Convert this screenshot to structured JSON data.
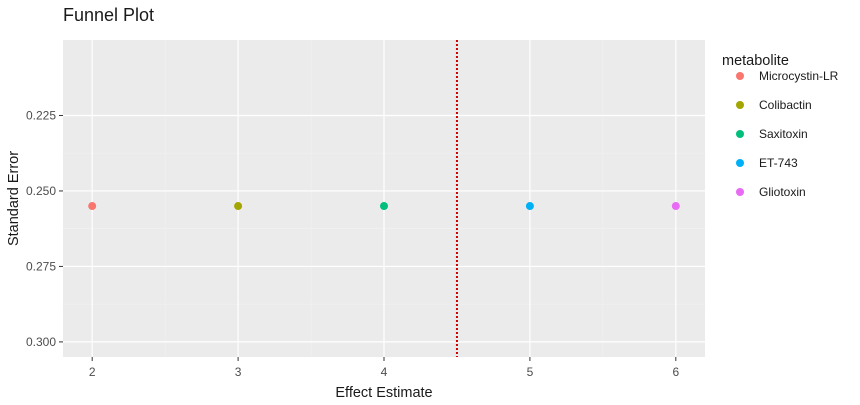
{
  "chart_data": {
    "type": "scatter",
    "title": "Funnel Plot",
    "xlabel": "Effect Estimate",
    "ylabel": "Standard Error",
    "xlim": [
      1.8,
      6.2
    ],
    "ylim": [
      0.305,
      0.2
    ],
    "y_reversed": true,
    "x_ticks": [
      2,
      3,
      4,
      5,
      6
    ],
    "x_tick_labels": [
      "2",
      "3",
      "4",
      "5",
      "6"
    ],
    "y_ticks": [
      0.225,
      0.25,
      0.275,
      0.3
    ],
    "y_tick_labels": [
      "0.225",
      "0.250",
      "0.275",
      "0.300"
    ],
    "reference_line": {
      "x": 4.5,
      "style": "dotted",
      "color": "#cc0000"
    },
    "grid": true,
    "legend": {
      "title": "metabolite",
      "placement": "right"
    },
    "series": [
      {
        "name": "Microcystin-LR",
        "color": "#F8766D",
        "x": [
          2
        ],
        "y": [
          0.255
        ]
      },
      {
        "name": "Colibactin",
        "color": "#A3A500",
        "x": [
          3
        ],
        "y": [
          0.255
        ]
      },
      {
        "name": "Saxitoxin",
        "color": "#00BF7D",
        "x": [
          4
        ],
        "y": [
          0.255
        ]
      },
      {
        "name": "ET-743",
        "color": "#00B0F6",
        "x": [
          5
        ],
        "y": [
          0.255
        ]
      },
      {
        "name": "Gliotoxin",
        "color": "#E76BF3",
        "x": [
          6
        ],
        "y": [
          0.255
        ]
      }
    ],
    "colors": {
      "panel_background": "#EBEBEB",
      "grid_major": "#FFFFFF",
      "grid_minor": "#F2F2F2"
    }
  }
}
